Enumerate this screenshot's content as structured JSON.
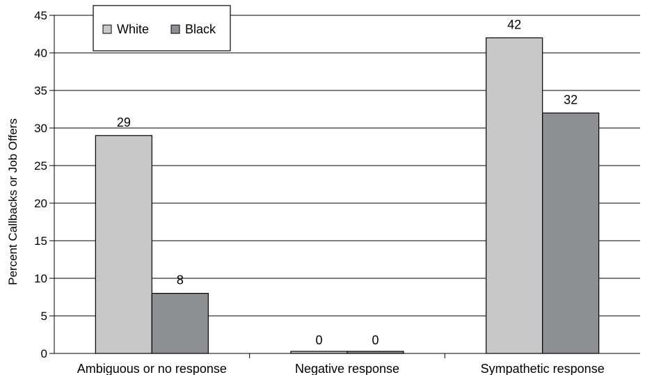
{
  "chart_data": {
    "type": "bar",
    "title": "",
    "xlabel": "",
    "ylabel": "Percent Callbacks or Job Offers",
    "categories": [
      "Ambiguous or no response",
      "Negative response",
      "Sympathetic response"
    ],
    "series": [
      {
        "name": "White",
        "values": [
          29,
          0,
          42
        ],
        "color": "#c8c8c8"
      },
      {
        "name": "Black",
        "values": [
          8,
          0,
          32
        ],
        "color": "#8e8f93"
      }
    ],
    "ylim": [
      0,
      45
    ],
    "yticks": [
      0,
      5,
      10,
      15,
      20,
      25,
      30,
      35,
      40,
      45
    ],
    "grid": true,
    "legend_position": "top-left",
    "data_labels": true
  }
}
